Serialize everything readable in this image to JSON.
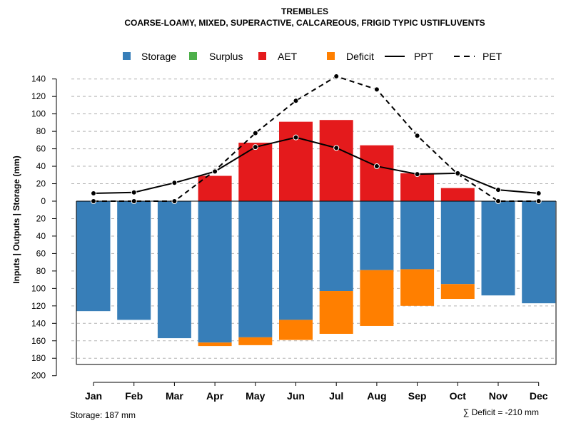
{
  "chart_data": {
    "type": "bar",
    "title": "TREMBLES",
    "subtitle": "COARSE-LOAMY, MIXED, SUPERACTIVE, CALCAREOUS, FRIGID TYPIC USTIFLUVENTS",
    "ylabel": "Inputs | Outputs | Storage    (mm)",
    "ylim": [
      -200,
      150
    ],
    "yticks": [
      140,
      120,
      100,
      80,
      60,
      40,
      20,
      0,
      -20,
      -40,
      -60,
      -80,
      -100,
      -120,
      -140,
      -160,
      -180,
      -200
    ],
    "ytick_labels": [
      "140",
      "120",
      "100",
      "80",
      "60",
      "40",
      "20",
      "0",
      "20",
      "40",
      "60",
      "80",
      "100",
      "120",
      "140",
      "160",
      "180",
      "200"
    ],
    "categories": [
      "Jan",
      "Feb",
      "Mar",
      "Apr",
      "May",
      "Jun",
      "Jul",
      "Aug",
      "Sep",
      "Oct",
      "Nov",
      "Dec"
    ],
    "series": [
      {
        "name": "Storage",
        "color": "#377EB8",
        "values": [
          -126,
          -136,
          -157,
          -162,
          -156,
          -136,
          -103,
          -79,
          -78,
          -95,
          -108,
          -117
        ]
      },
      {
        "name": "Surplus",
        "color": "#4DAF4A",
        "values": [
          0,
          0,
          0,
          0,
          0,
          0,
          0,
          0,
          0,
          0,
          0,
          0
        ]
      },
      {
        "name": "AET",
        "color": "#E41A1C",
        "values": [
          0,
          0,
          0,
          29,
          67,
          91,
          93,
          64,
          32,
          15,
          0,
          0
        ]
      },
      {
        "name": "Deficit",
        "color": "#FF7F00",
        "values": [
          0,
          0,
          0,
          -4,
          -9,
          -23,
          -49,
          -64,
          -42,
          -17,
          0,
          0
        ]
      },
      {
        "name": "PPT",
        "color": "#000000",
        "style": "solid",
        "values": [
          9,
          10,
          21,
          34,
          62,
          73,
          61,
          40,
          31,
          32,
          13,
          9
        ]
      },
      {
        "name": "PET",
        "color": "#000000",
        "style": "dashed",
        "values": [
          0,
          0,
          0,
          35,
          78,
          115,
          143,
          128,
          75,
          31,
          0,
          0
        ]
      }
    ],
    "legend": [
      "Storage",
      "Surplus",
      "AET",
      "Deficit",
      "PPT",
      "PET"
    ],
    "legend_position": "top",
    "grid": true,
    "storage_note": "Storage: 187 mm",
    "deficit_note": "∑ Deficit = -210 mm"
  }
}
